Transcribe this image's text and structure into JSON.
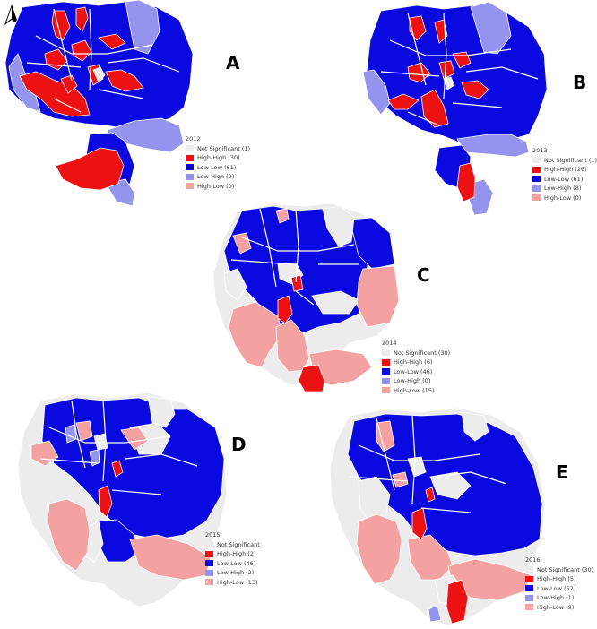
{
  "colors": {
    "not_significant": "#ececec",
    "high_high": "#ee1111",
    "low_low": "#0a0ae0",
    "low_high": "#9494ee",
    "high_low": "#f4a1a1",
    "border": "#ffffff"
  },
  "north_arrow": {
    "icon": "north-arrow-icon"
  },
  "panels": [
    {
      "letter": "A",
      "legend": {
        "year": "2012",
        "items": [
          {
            "label": "Not Significant (1)",
            "category": "not_significant"
          },
          {
            "label": "High-High (30)",
            "category": "high_high"
          },
          {
            "label": "Low-Low (61)",
            "category": "low_low"
          },
          {
            "label": "Low-High (9)",
            "category": "low_high"
          },
          {
            "label": "High-Low (0)",
            "category": "high_low"
          }
        ]
      }
    },
    {
      "letter": "B",
      "legend": {
        "year": "2013",
        "items": [
          {
            "label": "Not Significant (1)",
            "category": "not_significant"
          },
          {
            "label": "High-High (26)",
            "category": "high_high"
          },
          {
            "label": "Low-Low (61)",
            "category": "low_low"
          },
          {
            "label": "Low-High (8)",
            "category": "low_high"
          },
          {
            "label": "High-Low (0)",
            "category": "high_low"
          }
        ]
      }
    },
    {
      "letter": "C",
      "legend": {
        "year": "2014",
        "items": [
          {
            "label": "Not Significant (30)",
            "category": "not_significant"
          },
          {
            "label": "High-High (6)",
            "category": "high_high"
          },
          {
            "label": "Low-Low (46)",
            "category": "low_low"
          },
          {
            "label": "Low-High (0)",
            "category": "low_high"
          },
          {
            "label": "High-Low (15)",
            "category": "high_low"
          }
        ]
      }
    },
    {
      "letter": "D",
      "legend": {
        "year": "2015",
        "items": [
          {
            "label": "Not Significant",
            "category": "not_significant"
          },
          {
            "label": "High-High (2)",
            "category": "high_high"
          },
          {
            "label": "Low-Low (46)",
            "category": "low_low"
          },
          {
            "label": "Low-High (2)",
            "category": "low_high"
          },
          {
            "label": "High-Low (13)",
            "category": "high_low"
          }
        ]
      }
    },
    {
      "letter": "E",
      "legend": {
        "year": "2016",
        "items": [
          {
            "label": "Not Significant (30)",
            "category": "not_significant"
          },
          {
            "label": "High-High (5)",
            "category": "high_high"
          },
          {
            "label": "Low-Low (52)",
            "category": "low_low"
          },
          {
            "label": "Low-High (1)",
            "category": "low_high"
          },
          {
            "label": "High-Low (9)",
            "category": "high_low"
          }
        ]
      }
    }
  ]
}
